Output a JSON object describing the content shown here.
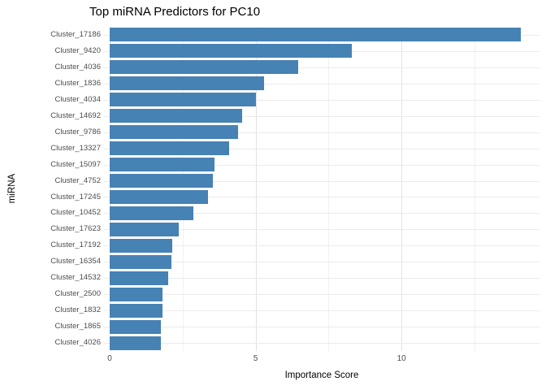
{
  "chart_data": {
    "type": "bar",
    "orientation": "horizontal",
    "title": "Top miRNA Predictors for PC10",
    "xlabel": "Importance Score",
    "ylabel": "miRNA",
    "categories": [
      "Cluster_17186",
      "Cluster_9420",
      "Cluster_4036",
      "Cluster_1836",
      "Cluster_4034",
      "Cluster_14692",
      "Cluster_9786",
      "Cluster_13327",
      "Cluster_15097",
      "Cluster_4752",
      "Cluster_17245",
      "Cluster_10452",
      "Cluster_17623",
      "Cluster_17192",
      "Cluster_16354",
      "Cluster_14532",
      "Cluster_2500",
      "Cluster_1832",
      "Cluster_1865",
      "Cluster_4026"
    ],
    "values": [
      14.1,
      8.3,
      6.45,
      5.3,
      5.0,
      4.55,
      4.4,
      4.1,
      3.6,
      3.55,
      3.38,
      2.86,
      2.38,
      2.15,
      2.12,
      2.0,
      1.82,
      1.81,
      1.76,
      1.75
    ],
    "xlim": [
      0,
      14.73
    ],
    "xticks": [
      0,
      5,
      10
    ],
    "xtick_labels": [
      "0",
      "5",
      "10"
    ],
    "xminor_ticks": [
      2.5,
      7.5,
      12.5
    ],
    "bar_color": "#4682b4",
    "grid": "on",
    "background": "#ffffff",
    "major_grid_color": "#e3e3e3",
    "minor_grid_color": "#f1f1f1",
    "tick_label_color": "#4d4d4d"
  }
}
